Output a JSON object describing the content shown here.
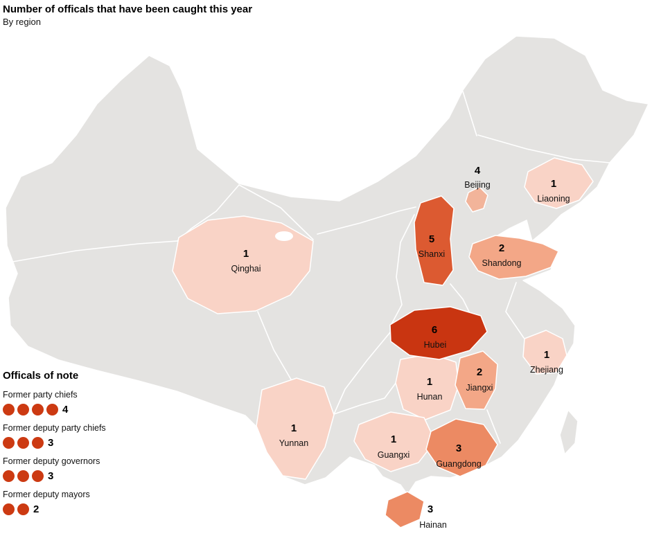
{
  "title": "Number of officals that have been caught this year",
  "subtitle": "By region",
  "map": {
    "gray_fill": "#e4e3e1",
    "border_color": "#ffffff",
    "regions": [
      {
        "name": "Beijing",
        "value": 4,
        "color": "#f2b49a"
      },
      {
        "name": "Liaoning",
        "value": 1,
        "color": "#f9d3c6"
      },
      {
        "name": "Shanxi",
        "value": 5,
        "color": "#dc5a31"
      },
      {
        "name": "Shandong",
        "value": 2,
        "color": "#f3a787"
      },
      {
        "name": "Qinghai",
        "value": 1,
        "color": "#f9d3c6"
      },
      {
        "name": "Hubei",
        "value": 6,
        "color": "#c93511"
      },
      {
        "name": "Zhejiang",
        "value": 1,
        "color": "#f9d3c6"
      },
      {
        "name": "Hunan",
        "value": 1,
        "color": "#f9d3c6"
      },
      {
        "name": "Jiangxi",
        "value": 2,
        "color": "#f3a787"
      },
      {
        "name": "Yunnan",
        "value": 1,
        "color": "#f9d3c6"
      },
      {
        "name": "Guangxi",
        "value": 1,
        "color": "#f9d3c6"
      },
      {
        "name": "Guangdong",
        "value": 3,
        "color": "#ec8a63"
      },
      {
        "name": "Hainan",
        "value": 3,
        "color": "#ec8a63"
      }
    ]
  },
  "legend": {
    "title": "Officals of note",
    "dot_color": "#cc3a12",
    "items": [
      {
        "label": "Former party chiefs",
        "count": 4
      },
      {
        "label": "Former deputy party chiefs",
        "count": 3
      },
      {
        "label": "Former deputy governors",
        "count": 3
      },
      {
        "label": "Former deputy mayors",
        "count": 2
      }
    ]
  },
  "chart_data": {
    "type": "heatmap",
    "subtype": "choropleth_map_china_provinces",
    "title": "Number of officals that have been caught this year",
    "subtitle": "By region",
    "categories": [
      "Beijing",
      "Liaoning",
      "Shanxi",
      "Shandong",
      "Qinghai",
      "Hubei",
      "Zhejiang",
      "Hunan",
      "Jiangxi",
      "Yunnan",
      "Guangxi",
      "Guangdong",
      "Hainan"
    ],
    "values": [
      4,
      1,
      5,
      2,
      1,
      6,
      1,
      1,
      2,
      1,
      1,
      3,
      3
    ],
    "color_scale": {
      "low": "#f9d3c6",
      "high": "#c93511",
      "no_data": "#e4e3e1"
    },
    "legend_position": "bottom-left",
    "annotations": [
      {
        "label": "Former party chiefs",
        "value": 4
      },
      {
        "label": "Former deputy party chiefs",
        "value": 3
      },
      {
        "label": "Former deputy governors",
        "value": 3
      },
      {
        "label": "Former deputy mayors",
        "value": 2
      }
    ]
  }
}
